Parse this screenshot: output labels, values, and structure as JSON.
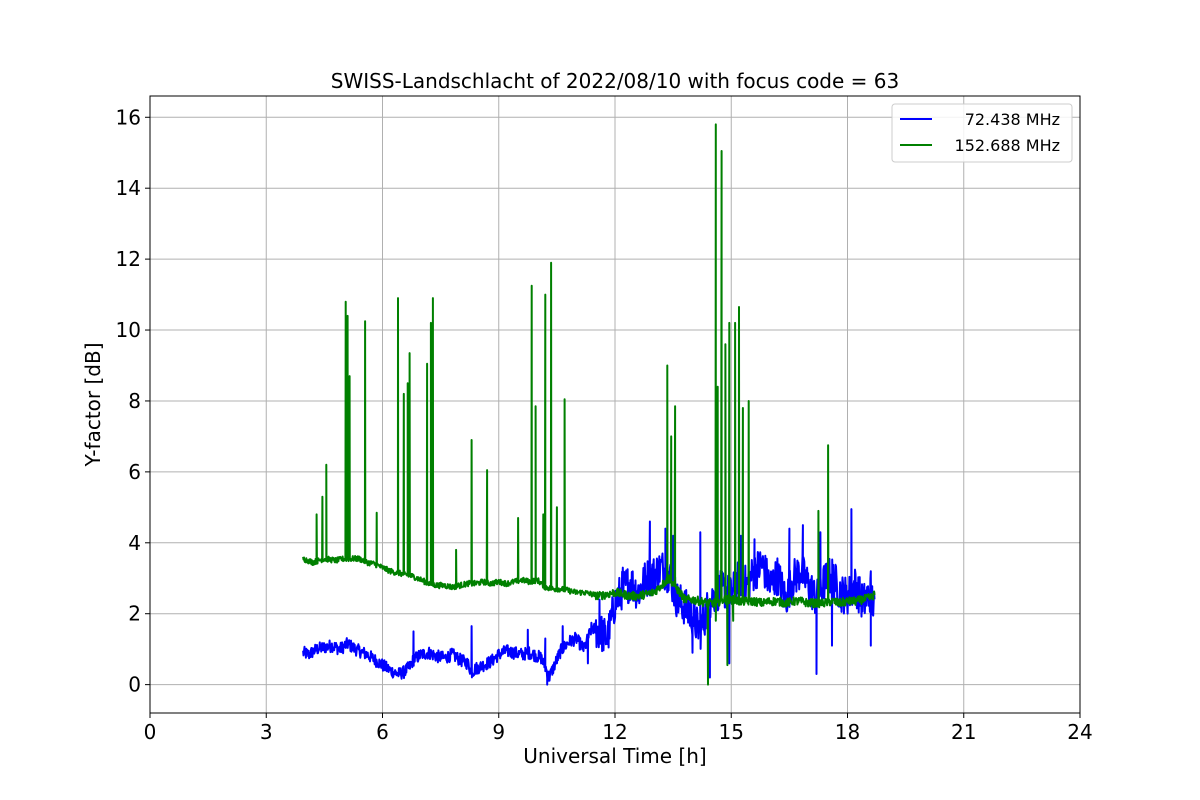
{
  "chart_data": {
    "type": "line",
    "title": "SWISS-Landschlacht of 2022/08/10 with focus code = 63",
    "xlabel": "Universal Time [h]",
    "ylabel": "Y-factor [dB]",
    "xlim": [
      0,
      24
    ],
    "ylim": [
      -0.8,
      16.6
    ],
    "xticks": [
      0,
      3,
      6,
      9,
      12,
      15,
      18,
      21,
      24
    ],
    "yticks": [
      0,
      2,
      4,
      6,
      8,
      10,
      12,
      14,
      16
    ],
    "grid": true,
    "legend_position": "top-right",
    "series": [
      {
        "name": "72.438 MHz",
        "color": "#0000ff",
        "x": [
          3.95,
          4.1,
          4.3,
          4.5,
          4.7,
          4.9,
          5.1,
          5.3,
          5.5,
          5.6,
          5.8,
          6.0,
          6.2,
          6.4,
          6.55,
          6.7,
          6.8,
          7.0,
          7.2,
          7.4,
          7.6,
          7.8,
          8.0,
          8.2,
          8.3,
          8.4,
          8.6,
          8.8,
          9.0,
          9.2,
          9.4,
          9.6,
          9.8,
          10.0,
          10.1,
          10.2,
          10.3,
          10.4,
          10.6,
          10.8,
          11.0,
          11.2,
          11.4,
          11.6,
          11.8,
          12.0,
          12.2,
          12.4,
          12.6,
          12.8,
          13.0,
          13.2,
          13.4,
          13.6,
          13.8,
          14.0,
          14.2,
          14.4,
          14.6,
          14.8,
          15.0,
          15.2,
          15.4,
          15.6,
          15.8,
          16.0,
          16.2,
          16.4,
          16.6,
          16.8,
          17.0,
          17.2,
          17.4,
          17.6,
          17.8,
          18.0,
          18.2,
          18.4,
          18.6,
          18.7
        ],
        "y": [
          0.9,
          0.85,
          1.0,
          1.05,
          1.1,
          1.0,
          1.15,
          1.0,
          0.9,
          0.85,
          0.7,
          0.55,
          0.4,
          0.3,
          0.35,
          0.5,
          0.7,
          0.85,
          0.9,
          0.8,
          0.75,
          0.85,
          0.7,
          0.6,
          0.35,
          0.45,
          0.55,
          0.65,
          0.85,
          0.95,
          0.9,
          0.85,
          0.9,
          0.8,
          0.75,
          0.5,
          0.2,
          0.45,
          0.95,
          1.2,
          1.3,
          1.0,
          1.6,
          1.5,
          1.3,
          2.3,
          2.7,
          2.9,
          2.6,
          3.0,
          3.1,
          3.3,
          3.1,
          2.4,
          2.2,
          1.9,
          1.5,
          2.2,
          2.6,
          2.7,
          2.5,
          3.0,
          2.8,
          3.2,
          3.4,
          2.8,
          3.1,
          2.4,
          3.0,
          3.2,
          2.8,
          2.4,
          2.9,
          3.1,
          2.6,
          2.5,
          2.8,
          2.3,
          2.6,
          2.1
        ],
        "spikes": [
          [
            6.8,
            1.5
          ],
          [
            8.3,
            1.65
          ],
          [
            9.75,
            1.55
          ],
          [
            10.2,
            1.3
          ],
          [
            10.65,
            1.65
          ],
          [
            11.6,
            2.4
          ],
          [
            12.2,
            3.3
          ],
          [
            12.9,
            4.6
          ],
          [
            13.3,
            4.4
          ],
          [
            13.5,
            4.2
          ],
          [
            13.9,
            2.5
          ],
          [
            14.2,
            4.3
          ],
          [
            14.6,
            5.2
          ],
          [
            15.25,
            4.2
          ],
          [
            15.6,
            4.1
          ],
          [
            16.5,
            4.4
          ],
          [
            16.85,
            4.5
          ],
          [
            17.3,
            4.3
          ],
          [
            18.1,
            4.95
          ],
          [
            18.6,
            3.2
          ]
        ],
        "dips": [
          [
            10.25,
            0.0
          ],
          [
            11.3,
            0.6
          ],
          [
            14.0,
            0.9
          ],
          [
            14.45,
            0.2
          ],
          [
            14.95,
            0.6
          ],
          [
            17.2,
            0.3
          ],
          [
            17.6,
            1.1
          ],
          [
            18.6,
            1.1
          ]
        ]
      },
      {
        "name": "152.688 MHz",
        "color": "#008000",
        "x": [
          3.95,
          4.2,
          4.5,
          4.8,
          5.0,
          5.2,
          5.4,
          5.6,
          5.8,
          6.0,
          6.2,
          6.4,
          6.6,
          6.8,
          7.0,
          7.2,
          7.4,
          7.6,
          7.8,
          8.0,
          8.2,
          8.4,
          8.6,
          8.8,
          9.0,
          9.2,
          9.4,
          9.6,
          9.8,
          10.0,
          10.2,
          10.4,
          10.6,
          10.8,
          11.0,
          11.2,
          11.4,
          11.6,
          11.8,
          12.0,
          12.2,
          12.4,
          12.6,
          12.8,
          13.0,
          13.2,
          13.4,
          13.6,
          13.8,
          14.0,
          14.2,
          14.4,
          14.6,
          14.8,
          15.0,
          15.2,
          15.4,
          15.6,
          15.8,
          16.0,
          16.2,
          16.4,
          16.6,
          16.8,
          17.0,
          17.2,
          17.4,
          17.6,
          17.8,
          18.0,
          18.2,
          18.4,
          18.6,
          18.7
        ],
        "y": [
          3.55,
          3.45,
          3.55,
          3.5,
          3.55,
          3.55,
          3.55,
          3.45,
          3.4,
          3.3,
          3.2,
          3.15,
          3.1,
          3.05,
          2.95,
          2.85,
          2.8,
          2.8,
          2.75,
          2.8,
          2.85,
          2.85,
          2.9,
          2.85,
          2.9,
          2.85,
          2.9,
          2.95,
          2.9,
          2.95,
          2.75,
          2.7,
          2.7,
          2.65,
          2.6,
          2.6,
          2.55,
          2.5,
          2.55,
          2.6,
          2.55,
          2.5,
          2.5,
          2.55,
          2.6,
          2.8,
          3.0,
          2.7,
          2.4,
          2.4,
          2.35,
          2.3,
          2.3,
          2.4,
          2.4,
          2.35,
          2.35,
          2.35,
          2.3,
          2.35,
          2.35,
          2.3,
          2.35,
          2.35,
          2.3,
          2.3,
          2.3,
          2.35,
          2.3,
          2.35,
          2.35,
          2.4,
          2.45,
          2.55
        ],
        "spikes": [
          [
            4.3,
            4.8
          ],
          [
            4.45,
            5.3
          ],
          [
            4.55,
            6.2
          ],
          [
            5.05,
            10.8
          ],
          [
            5.1,
            10.4
          ],
          [
            5.15,
            8.7
          ],
          [
            5.55,
            10.25
          ],
          [
            5.85,
            4.85
          ],
          [
            6.4,
            10.9
          ],
          [
            6.55,
            8.2
          ],
          [
            6.65,
            8.5
          ],
          [
            6.7,
            9.35
          ],
          [
            7.15,
            9.05
          ],
          [
            7.25,
            10.2
          ],
          [
            7.3,
            10.9
          ],
          [
            7.9,
            3.8
          ],
          [
            8.3,
            6.9
          ],
          [
            8.7,
            6.05
          ],
          [
            9.5,
            4.7
          ],
          [
            9.85,
            11.25
          ],
          [
            9.95,
            7.85
          ],
          [
            10.15,
            4.8
          ],
          [
            10.2,
            11.0
          ],
          [
            10.35,
            11.9
          ],
          [
            10.5,
            5.0
          ],
          [
            10.7,
            8.05
          ],
          [
            13.35,
            9.0
          ],
          [
            13.45,
            7.0
          ],
          [
            13.55,
            7.85
          ],
          [
            14.6,
            15.8
          ],
          [
            14.65,
            8.4
          ],
          [
            14.75,
            15.05
          ],
          [
            14.85,
            9.6
          ],
          [
            14.95,
            10.2
          ],
          [
            15.1,
            10.2
          ],
          [
            15.2,
            10.65
          ],
          [
            15.3,
            7.8
          ],
          [
            15.45,
            8.0
          ],
          [
            17.25,
            4.9
          ],
          [
            17.5,
            6.75
          ]
        ],
        "dips": [
          [
            14.4,
            0.0
          ],
          [
            14.6,
            1.8
          ],
          [
            14.9,
            0.55
          ],
          [
            15.05,
            1.8
          ]
        ]
      }
    ]
  }
}
